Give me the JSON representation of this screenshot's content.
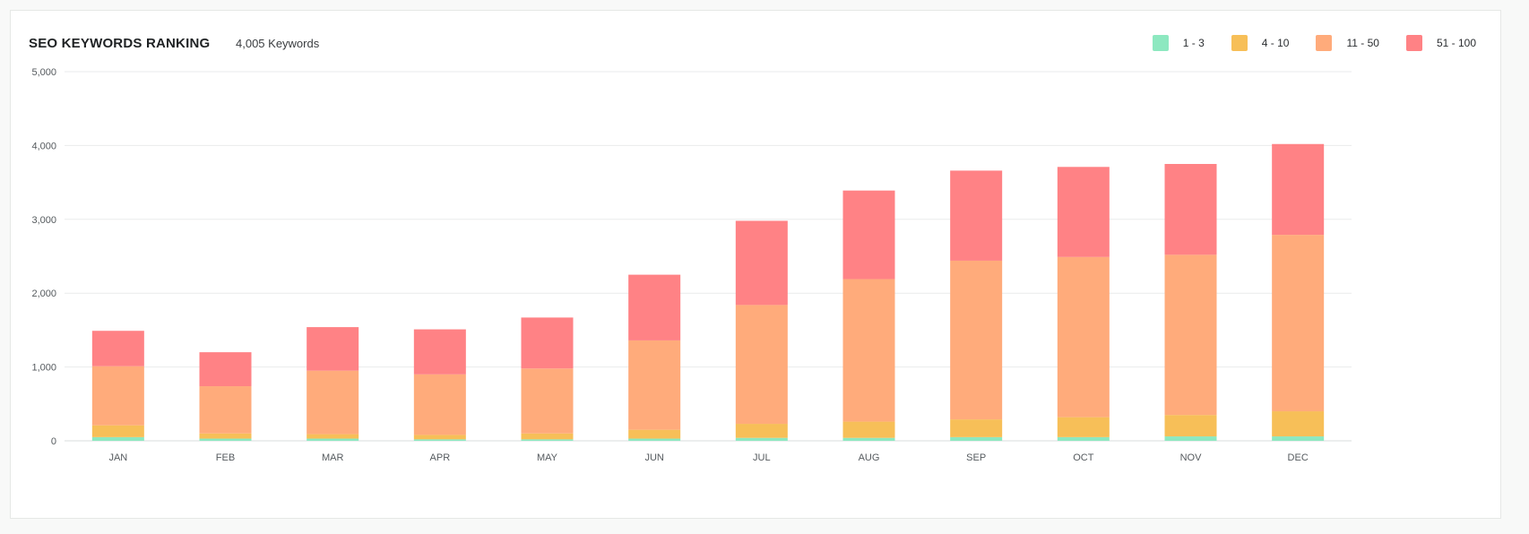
{
  "header": {
    "title": "SEO KEYWORDS RANKING",
    "subtitle": "4,005 Keywords"
  },
  "chart_data": {
    "type": "bar",
    "stacked": true,
    "categories": [
      "JAN",
      "FEB",
      "MAR",
      "APR",
      "MAY",
      "JUN",
      "JUL",
      "AUG",
      "SEP",
      "OCT",
      "NOV",
      "DEC"
    ],
    "series": [
      {
        "name": "1 - 3",
        "color": "#8de8c0",
        "values": [
          50,
          30,
          30,
          20,
          20,
          30,
          40,
          40,
          50,
          50,
          60,
          60
        ]
      },
      {
        "name": "4 - 10",
        "color": "#f7bf58",
        "values": [
          160,
          70,
          60,
          60,
          80,
          120,
          190,
          220,
          240,
          270,
          290,
          340
        ]
      },
      {
        "name": "11 - 50",
        "color": "#ffab7b",
        "values": [
          800,
          640,
          860,
          820,
          880,
          1210,
          1610,
          1930,
          2150,
          2170,
          2170,
          2390
        ]
      },
      {
        "name": "51 - 100",
        "color": "#ff8285",
        "values": [
          480,
          460,
          590,
          610,
          690,
          890,
          1140,
          1200,
          1220,
          1220,
          1230,
          1230
        ]
      }
    ],
    "ylim": [
      0,
      5000
    ],
    "yticks": [
      0,
      1000,
      2000,
      3000,
      4000,
      5000
    ],
    "ytick_labels": [
      "0",
      "1,000",
      "2,000",
      "3,000",
      "4,000",
      "5,000"
    ],
    "grid": true,
    "legend_position": "top-right"
  }
}
